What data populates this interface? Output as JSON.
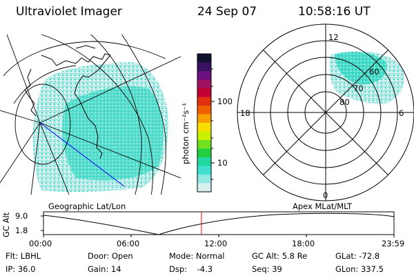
{
  "header": {
    "instrument": "Ultraviolet Imager",
    "date": "24 Sep 07",
    "time": "10:58:16 UT"
  },
  "panels": {
    "left_label": "Geographic Lat/Lon",
    "right_label": "Apex MLat/MLT"
  },
  "colorbar": {
    "unit_label": "photon cm⁻²s⁻¹",
    "tick_labels": [
      "100",
      "10"
    ],
    "colors_top_to_bottom": [
      "#101030",
      "#3a1060",
      "#6a1080",
      "#a01060",
      "#c00030",
      "#e03010",
      "#f06000",
      "#f8a000",
      "#f8e000",
      "#c8f000",
      "#70e020",
      "#20d040",
      "#20d8a0",
      "#40e0d0",
      "#90e8e0",
      "#d8f0f0"
    ]
  },
  "polar": {
    "mlt_labels": {
      "top": "12",
      "left": "18",
      "right": "6",
      "bottom": "0"
    },
    "lat_labels": [
      "60",
      "70",
      "80"
    ]
  },
  "altitude_plot": {
    "ylabel": "GC Alt",
    "y_ticks": [
      "9.0",
      "1.8"
    ],
    "x_ticks": [
      "00:00",
      "06:00",
      "12:00",
      "18:00",
      "23:59"
    ]
  },
  "status": {
    "flt": "Flt: LBHL",
    "door": "Door: Open",
    "mode": "Mode: Normal",
    "gc_alt": "GC Alt: 5.8 Re",
    "glat": "GLat: -72.8",
    "ip": "IP: 36.0",
    "gain": "Gain: 14",
    "dsp": "Dsp:    -4.3",
    "seq": "Seq: 39",
    "glon": "GLon: 337.5"
  },
  "colors": {
    "speckle_cyan": "#40e0c8",
    "speckle_light": "#d0e8e8",
    "track_line": "#0000ff",
    "time_marker": "#ff0000"
  }
}
